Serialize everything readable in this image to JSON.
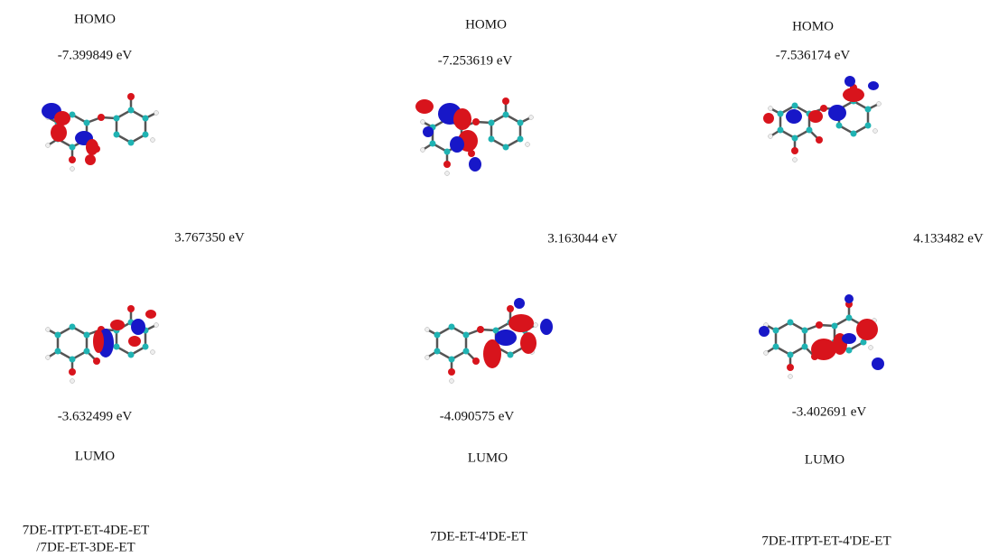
{
  "panels": [
    {
      "homo_label": "HOMO",
      "homo_energy": "-7.399849 eV",
      "gap": "3.767350 eV",
      "lumo_energy": "-3.632499 eV",
      "lumo_label": "LUMO",
      "name": [
        "7DE-ITPT-ET-4DE-ET",
        "/7DE-ET-3DE-ET"
      ]
    },
    {
      "homo_label": "HOMO",
      "homo_energy": "-7.253619 eV",
      "gap": "3.163044 eV",
      "lumo_energy": "-4.090575 eV",
      "lumo_label": "LUMO",
      "name": [
        "7DE-ET-4'DE-ET"
      ]
    },
    {
      "homo_label": "HOMO",
      "homo_energy": "-7.536174 eV",
      "gap": "4.133482 eV",
      "lumo_energy": "-3.402691 eV",
      "lumo_label": "LUMO",
      "name": [
        "7DE-ITPT-ET-4'DE-ET"
      ]
    }
  ]
}
